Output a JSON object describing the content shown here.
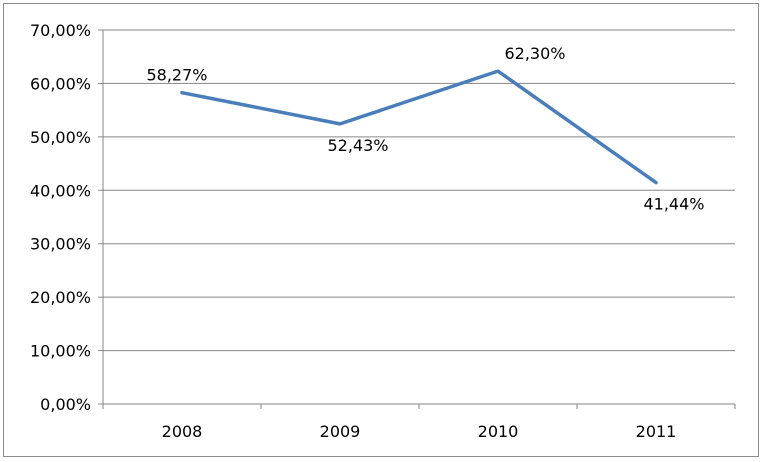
{
  "chart_data": {
    "type": "line",
    "categories": [
      "2008",
      "2009",
      "2010",
      "2011"
    ],
    "series": [
      {
        "values": [
          58.27,
          52.43,
          62.3,
          41.44
        ],
        "labels": [
          "58,27%",
          "52,43%",
          "62,30%",
          "41,44%"
        ],
        "color": "#4a7ebb"
      }
    ],
    "yticks": [
      "0,00%",
      "10,00%",
      "20,00%",
      "30,00%",
      "40,00%",
      "50,00%",
      "60,00%",
      "70,00%"
    ],
    "ylim": [
      0,
      70
    ],
    "grid": true,
    "legend": "none",
    "gridline_color": "#868686",
    "axis_color": "#868686"
  }
}
